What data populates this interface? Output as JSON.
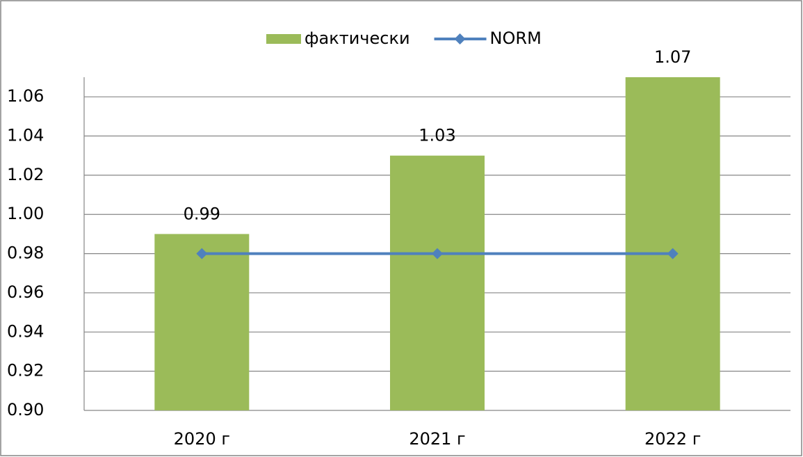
{
  "chart_data": {
    "type": "bar",
    "categories": [
      "2020 г",
      "2021 г",
      "2022 г"
    ],
    "series": [
      {
        "name": "фактически",
        "type": "bar",
        "color": "#9bbb59",
        "values": [
          0.99,
          1.03,
          1.07
        ]
      },
      {
        "name": "NORM",
        "type": "line",
        "color": "#4f81bd",
        "values": [
          0.98,
          0.98,
          0.98
        ]
      }
    ],
    "ylim": [
      0.9,
      1.07
    ],
    "yticks": [
      {
        "value": 0.9,
        "label": "0.90"
      },
      {
        "value": 0.92,
        "label": "0.92"
      },
      {
        "value": 0.94,
        "label": "0.94"
      },
      {
        "value": 0.96,
        "label": "0.96"
      },
      {
        "value": 0.98,
        "label": "0.98"
      },
      {
        "value": 1.0,
        "label": "1.00"
      },
      {
        "value": 1.02,
        "label": "1.02"
      },
      {
        "value": 1.04,
        "label": "1.04"
      },
      {
        "value": 1.06,
        "label": "1.06"
      }
    ],
    "grid": true,
    "legend": "top"
  }
}
